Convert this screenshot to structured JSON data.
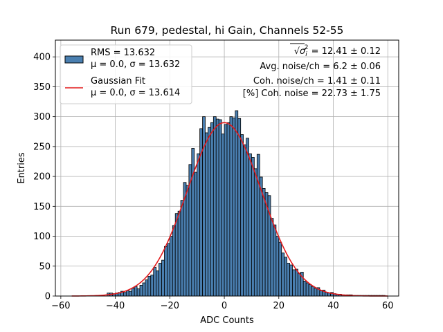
{
  "chart_data": {
    "type": "bar",
    "title": "Run 679, pedestal, hi Gain, Channels 52-55",
    "xlabel": "ADC Counts",
    "ylabel": "Entries",
    "xlim": [
      -62,
      64
    ],
    "ylim": [
      0,
      428
    ],
    "xticks": [
      -60,
      -40,
      -20,
      0,
      20,
      40,
      60
    ],
    "yticks": [
      0,
      50,
      100,
      150,
      200,
      250,
      300,
      350,
      400
    ],
    "grid": true,
    "bin_width": 1,
    "series": [
      {
        "name": "RMS = 13.632",
        "name_line2": "μ = 0.0, σ = 13.632",
        "kind": "histogram",
        "color": "#4a7fb0",
        "edgecolor": "#000000",
        "bin_starts": [
          -43,
          -42,
          -41,
          -40,
          -39,
          -38,
          -37,
          -36,
          -35,
          -34,
          -33,
          -32,
          -31,
          -30,
          -29,
          -28,
          -27,
          -26,
          -25,
          -24,
          -23,
          -22,
          -21,
          -20,
          -19,
          -18,
          -17,
          -16,
          -15,
          -14,
          -13,
          -12,
          -11,
          -10,
          -9,
          -8,
          -7,
          -6,
          -5,
          -4,
          -3,
          -2,
          -1,
          0,
          1,
          2,
          3,
          4,
          5,
          6,
          7,
          8,
          9,
          10,
          11,
          12,
          13,
          14,
          15,
          16,
          17,
          18,
          19,
          20,
          21,
          22,
          23,
          24,
          25,
          26,
          27,
          28,
          29,
          30,
          31,
          32,
          33,
          34,
          35,
          36,
          37,
          38,
          39,
          40,
          41,
          42,
          43,
          44,
          45,
          46,
          47,
          48,
          49,
          50,
          51,
          52,
          53,
          54,
          55,
          56,
          57,
          58
        ],
        "values": [
          5,
          5,
          4,
          5,
          6,
          8,
          6,
          9,
          8,
          13,
          16,
          12,
          18,
          22,
          27,
          33,
          35,
          48,
          42,
          55,
          60,
          83,
          88,
          100,
          118,
          138,
          142,
          160,
          190,
          185,
          220,
          247,
          207,
          238,
          280,
          300,
          273,
          282,
          290,
          300,
          296,
          295,
          271,
          287,
          290,
          300,
          298,
          310,
          297,
          270,
          253,
          264,
          238,
          232,
          213,
          237,
          199,
          180,
          173,
          168,
          130,
          119,
          100,
          90,
          72,
          65,
          55,
          52,
          44,
          45,
          38,
          40,
          25,
          22,
          19,
          16,
          13,
          14,
          9,
          10,
          6,
          5,
          6,
          4,
          3,
          3,
          2,
          2,
          2,
          2,
          1,
          1,
          1,
          1,
          1,
          1,
          1,
          1,
          1,
          1,
          1,
          1
        ]
      },
      {
        "name": "Gaussian Fit",
        "name_line2": "μ = 0.0, σ = 13.614",
        "kind": "line",
        "color": "#e31a1c",
        "mu": 0.0,
        "sigma": 13.614,
        "amplitude": 290,
        "x_range": [
          -56,
          60
        ]
      }
    ],
    "annotations": [
      {
        "prefix": "√",
        "sym": "σ",
        "sub": "i",
        "sup": "2",
        "text": " = 12.41 ± 0.12"
      },
      {
        "text": "Avg. noise/ch = 6.2 ± 0.06"
      },
      {
        "text": "Coh. noise/ch = 1.41 ± 0.11"
      },
      {
        "text": "[%] Coh. noise = 22.73 ± 1.75"
      }
    ]
  }
}
